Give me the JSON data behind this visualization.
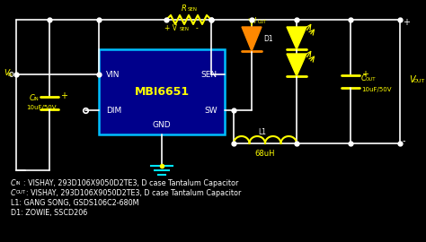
{
  "bg_color": "#000000",
  "wire_color": "#ffffff",
  "yellow_color": "#ffff00",
  "cyan_color": "#00e5ff",
  "ic_fill": "#00008B",
  "ic_border": "#00bfff",
  "diode_fill_orange": "#ff8800",
  "led_color": "#ffff00",
  "text_color": "#ffffff",
  "ic_label": "MBI6651",
  "pin_vin": "VIN",
  "pin_sen": "SEN",
  "pin_dim": "DIM",
  "pin_sw": "SW",
  "pin_gnd": "GND",
  "l1_value": "68uH",
  "d1_label": "D1",
  "cin_value": "10uF/50V",
  "cout_value": "10uF/50V",
  "note1_rest": ": VISHAY, 293D106X9050D2TE3, D case Tantalum Capacitor",
  "note2_rest": ": VISHAY, 293D106X9050D2TE3, D case Tantalum Capacitor",
  "note3": "L1: GANG SONG, GSDS106C2-680M",
  "note4": "D1: ZOWIE, SSCD206"
}
